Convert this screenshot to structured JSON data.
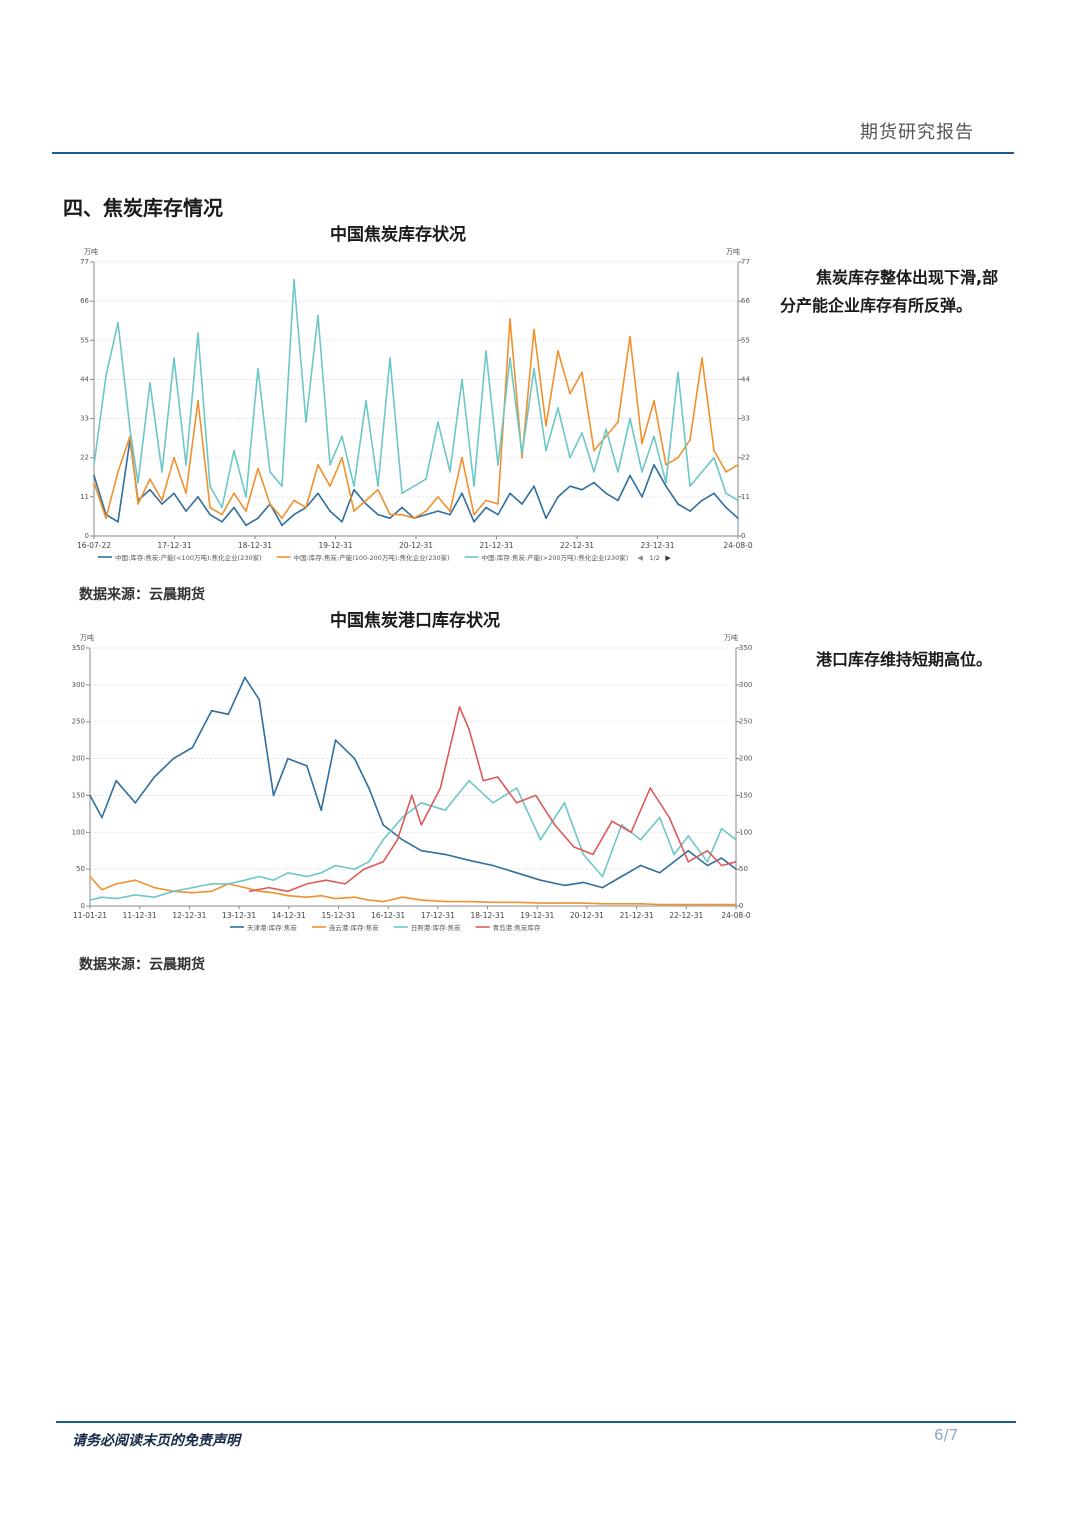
{
  "header": {
    "title": "期货研究报告"
  },
  "section": {
    "title": "四、焦炭库存情况"
  },
  "footer": {
    "disclaimer": "请务必阅读末页的免责声明",
    "page": "6/7"
  },
  "comments": {
    "chart1": [
      "焦炭库存整体出现下滑,部",
      "分产能企业库存有所反弹。"
    ],
    "chart2": "港口库存维持短期高位。"
  },
  "colors": {
    "rule": "#1f5b9a",
    "blue": "#2f6f9f",
    "orange": "#f0912d",
    "teal": "#6cc7c6",
    "red": "#dd5a5a"
  },
  "chart_data": [
    {
      "type": "line",
      "title": "中国焦炭库存状况",
      "source": "数据来源：云晨期货",
      "unit": "万吨",
      "ylim": [
        0,
        77
      ],
      "yticks": [
        0,
        11,
        22,
        33,
        44,
        55,
        66,
        77
      ],
      "xticks": [
        "16-07-22",
        "17-12-31",
        "18-12-31",
        "19-12-31",
        "20-12-31",
        "21-12-31",
        "22-12-31",
        "23-12-31",
        "24-08-0"
      ],
      "xrange": [
        2016.55,
        2024.6
      ],
      "legend_pager": "1/2",
      "legend_position": "bottom",
      "grid": true,
      "series": [
        {
          "name": "中国:库存:焦炭:产能(<100万吨):焦化企业(230家)",
          "color": "#2f6f9f",
          "x": [
            2016.55,
            2016.7,
            2016.85,
            2017.0,
            2017.1,
            2017.25,
            2017.4,
            2017.55,
            2017.7,
            2017.85,
            2018.0,
            2018.15,
            2018.3,
            2018.45,
            2018.6,
            2018.75,
            2018.9,
            2019.05,
            2019.2,
            2019.35,
            2019.5,
            2019.65,
            2019.8,
            2019.95,
            2020.1,
            2020.25,
            2020.4,
            2020.55,
            2020.7,
            2020.85,
            2021.0,
            2021.15,
            2021.3,
            2021.45,
            2021.6,
            2021.75,
            2021.9,
            2022.05,
            2022.2,
            2022.35,
            2022.5,
            2022.65,
            2022.8,
            2022.95,
            2023.1,
            2023.25,
            2023.4,
            2023.55,
            2023.7,
            2023.85,
            2024.0,
            2024.15,
            2024.3,
            2024.45,
            2024.6
          ],
          "values": [
            17,
            6,
            4,
            27,
            10,
            13,
            9,
            12,
            7,
            11,
            6,
            4,
            8,
            3,
            5,
            9,
            3,
            6,
            8,
            12,
            7,
            4,
            13,
            9,
            6,
            5,
            8,
            5,
            6,
            7,
            6,
            12,
            4,
            8,
            6,
            12,
            9,
            14,
            5,
            11,
            14,
            13,
            15,
            12,
            10,
            17,
            11,
            20,
            14,
            9,
            7,
            10,
            12,
            8,
            5
          ]
        },
        {
          "name": "中国:库存:焦炭:产能(100-200万吨):焦化企业(230家)",
          "color": "#f0912d",
          "x": [
            2016.55,
            2016.7,
            2016.85,
            2017.0,
            2017.1,
            2017.25,
            2017.4,
            2017.55,
            2017.7,
            2017.85,
            2018.0,
            2018.15,
            2018.3,
            2018.45,
            2018.6,
            2018.75,
            2018.9,
            2019.05,
            2019.2,
            2019.35,
            2019.5,
            2019.65,
            2019.8,
            2019.95,
            2020.1,
            2020.25,
            2020.4,
            2020.55,
            2020.7,
            2020.85,
            2021.0,
            2021.15,
            2021.3,
            2021.45,
            2021.6,
            2021.75,
            2021.9,
            2022.05,
            2022.2,
            2022.35,
            2022.5,
            2022.65,
            2022.8,
            2022.95,
            2023.1,
            2023.25,
            2023.4,
            2023.55,
            2023.7,
            2023.85,
            2024.0,
            2024.15,
            2024.3,
            2024.45,
            2024.6
          ],
          "values": [
            15,
            5,
            18,
            28,
            9,
            16,
            10,
            22,
            12,
            38,
            8,
            6,
            12,
            7,
            19,
            9,
            5,
            10,
            8,
            20,
            14,
            22,
            7,
            10,
            13,
            6,
            6,
            5,
            7,
            11,
            7,
            22,
            6,
            10,
            9,
            61,
            22,
            58,
            31,
            52,
            40,
            46,
            24,
            28,
            32,
            56,
            26,
            38,
            20,
            22,
            27,
            50,
            24,
            18,
            20
          ]
        },
        {
          "name": "中国:库存:焦炭:产能(>200万吨):焦化企业(230家)",
          "color": "#6cc7c6",
          "x": [
            2016.55,
            2016.7,
            2016.85,
            2017.0,
            2017.1,
            2017.25,
            2017.4,
            2017.55,
            2017.7,
            2017.85,
            2018.0,
            2018.15,
            2018.3,
            2018.45,
            2018.6,
            2018.75,
            2018.9,
            2019.05,
            2019.2,
            2019.35,
            2019.5,
            2019.65,
            2019.8,
            2019.95,
            2020.1,
            2020.25,
            2020.4,
            2020.55,
            2020.7,
            2020.85,
            2021.0,
            2021.15,
            2021.3,
            2021.45,
            2021.6,
            2021.75,
            2021.9,
            2022.05,
            2022.2,
            2022.35,
            2022.5,
            2022.65,
            2022.8,
            2022.95,
            2023.1,
            2023.25,
            2023.4,
            2023.55,
            2023.7,
            2023.85,
            2024.0,
            2024.15,
            2024.3,
            2024.45,
            2024.6
          ],
          "values": [
            20,
            45,
            60,
            30,
            15,
            43,
            18,
            50,
            20,
            57,
            14,
            8,
            24,
            11,
            47,
            18,
            14,
            72,
            32,
            62,
            20,
            28,
            14,
            38,
            14,
            50,
            12,
            14,
            16,
            32,
            18,
            44,
            14,
            52,
            20,
            50,
            23,
            47,
            24,
            36,
            22,
            29,
            18,
            30,
            18,
            33,
            18,
            28,
            15,
            46,
            14,
            18,
            22,
            12,
            10
          ]
        }
      ]
    },
    {
      "type": "line",
      "title": "中国焦炭港口库存状况",
      "source": "数据来源：云晨期货",
      "unit": "万吨",
      "ylim": [
        0,
        350
      ],
      "yticks": [
        0,
        50,
        100,
        150,
        200,
        250,
        300,
        350
      ],
      "xticks": [
        "11-01-21",
        "11-12-31",
        "12-12-31",
        "13-12-31",
        "14-12-31",
        "15-12-31",
        "16-12-31",
        "17-12-31",
        "18-12-31",
        "19-12-31",
        "20-12-31",
        "21-12-31",
        "22-12-31",
        "24-08-0"
      ],
      "xrange": [
        2011.05,
        2024.6
      ],
      "legend_position": "bottom",
      "grid": true,
      "series": [
        {
          "name": "天津港:库存:焦炭",
          "color": "#2f6f9f",
          "x": [
            2011.05,
            2011.3,
            2011.6,
            2012.0,
            2012.4,
            2012.8,
            2013.2,
            2013.6,
            2013.95,
            2014.3,
            2014.6,
            2014.9,
            2015.2,
            2015.6,
            2015.9,
            2016.2,
            2016.6,
            2016.9,
            2017.2,
            2017.6,
            2018.0,
            2018.5,
            2019.0,
            2019.5,
            2020.0,
            2020.5,
            2021.0,
            2021.4,
            2021.8,
            2022.2,
            2022.6,
            2023.0,
            2023.3,
            2023.6,
            2024.0,
            2024.3,
            2024.6
          ],
          "values": [
            150,
            120,
            170,
            140,
            175,
            200,
            215,
            265,
            260,
            310,
            280,
            150,
            200,
            190,
            130,
            225,
            200,
            160,
            110,
            90,
            75,
            70,
            62,
            55,
            45,
            35,
            28,
            32,
            25,
            40,
            55,
            45,
            60,
            75,
            55,
            65,
            50
          ]
        },
        {
          "name": "连云港:库存:焦炭",
          "color": "#f0912d",
          "x": [
            2011.05,
            2011.3,
            2011.6,
            2012.0,
            2012.4,
            2012.8,
            2013.2,
            2013.6,
            2013.95,
            2014.3,
            2014.6,
            2014.9,
            2015.2,
            2015.6,
            2015.9,
            2016.2,
            2016.6,
            2016.9,
            2017.2,
            2017.6,
            2018.0,
            2018.5,
            2019.0,
            2019.5,
            2020.0,
            2020.5,
            2021.0,
            2021.4,
            2021.8,
            2022.2,
            2022.6,
            2023.0,
            2023.3,
            2023.6,
            2024.0,
            2024.3,
            2024.6
          ],
          "values": [
            40,
            22,
            30,
            35,
            25,
            20,
            18,
            20,
            30,
            25,
            20,
            18,
            14,
            12,
            14,
            10,
            12,
            8,
            6,
            12,
            8,
            6,
            6,
            5,
            5,
            4,
            4,
            4,
            3,
            3,
            3,
            2,
            2,
            2,
            2,
            2,
            2
          ]
        },
        {
          "name": "日照港:库存:焦炭",
          "color": "#6cc7c6",
          "x": [
            2011.05,
            2011.3,
            2011.6,
            2012.0,
            2012.4,
            2012.8,
            2013.2,
            2013.6,
            2013.95,
            2014.3,
            2014.6,
            2014.9,
            2015.2,
            2015.6,
            2015.9,
            2016.2,
            2016.6,
            2016.9,
            2017.2,
            2017.6,
            2018.0,
            2018.5,
            2019.0,
            2019.5,
            2020.0,
            2020.5,
            2021.0,
            2021.4,
            2021.8,
            2022.2,
            2022.6,
            2023.0,
            2023.3,
            2023.6,
            2024.0,
            2024.3,
            2024.6
          ],
          "values": [
            8,
            12,
            10,
            15,
            12,
            20,
            25,
            30,
            30,
            35,
            40,
            35,
            45,
            40,
            45,
            55,
            50,
            60,
            90,
            120,
            140,
            130,
            170,
            140,
            160,
            90,
            140,
            70,
            40,
            110,
            90,
            120,
            70,
            95,
            60,
            105,
            90
          ]
        },
        {
          "name": "青岛港:焦炭库存",
          "color": "#dd5a5a",
          "x": [
            2014.4,
            2014.8,
            2015.2,
            2015.6,
            2016.0,
            2016.4,
            2016.8,
            2017.2,
            2017.5,
            2017.8,
            2018.0,
            2018.4,
            2018.8,
            2019.0,
            2019.3,
            2019.6,
            2020.0,
            2020.4,
            2020.8,
            2021.2,
            2021.6,
            2022.0,
            2022.4,
            2022.8,
            2023.2,
            2023.6,
            2024.0,
            2024.3,
            2024.6
          ],
          "values": [
            20,
            25,
            20,
            30,
            35,
            30,
            50,
            60,
            90,
            150,
            110,
            160,
            270,
            240,
            170,
            175,
            140,
            150,
            110,
            80,
            70,
            115,
            100,
            160,
            120,
            60,
            75,
            55,
            60
          ]
        }
      ]
    }
  ]
}
